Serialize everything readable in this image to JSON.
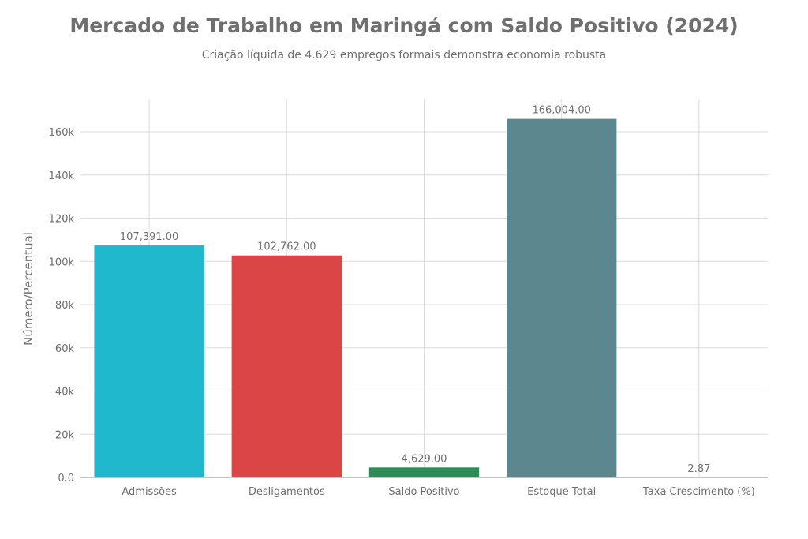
{
  "chart_data": {
    "type": "bar",
    "title": "Mercado de Trabalho em Maringá com Saldo Positivo (2024)",
    "subtitle": "Criação líquida de 4.629 empregos formais demonstra economia robusta",
    "xlabel": "",
    "ylabel": "Número/Percentual",
    "categories": [
      "Admissões",
      "Desligamentos",
      "Saldo Positivo",
      "Estoque Total",
      "Taxa Crescimento (%)"
    ],
    "values": [
      107391,
      102762,
      4629,
      166004,
      2.87
    ],
    "value_labels": [
      "107,391.00",
      "102,762.00",
      "4,629.00",
      "166,004.00",
      "2.87"
    ],
    "colors": [
      "#1fb8cd",
      "#db4545",
      "#2e8b57",
      "#5d878f",
      "#d2ba4c"
    ],
    "ylim": [
      0,
      175000
    ],
    "yticks": [
      0,
      20000,
      40000,
      60000,
      80000,
      100000,
      120000,
      140000,
      160000
    ],
    "ytick_labels": [
      "0.0",
      "20k",
      "40k",
      "60k",
      "80k",
      "100k",
      "120k",
      "140k",
      "160k"
    ],
    "grid": true
  }
}
